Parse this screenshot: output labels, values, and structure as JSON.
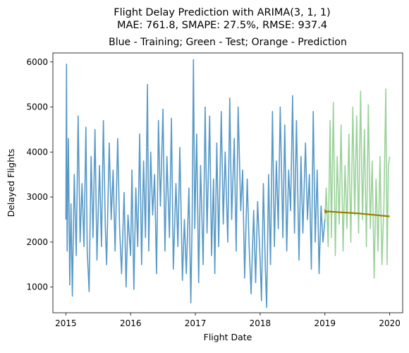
{
  "chart_data": {
    "type": "line",
    "suptitle_lines": [
      "Flight Delay Prediction with ARIMA(3, 1, 1)",
      "MAE: 761.8, SMAPE: 27.5%, RMSE: 937.4"
    ],
    "title": "Blue - Training; Green - Test; Orange - Prediction",
    "xlabel": "Flight Date",
    "ylabel": "Delayed Flights",
    "xlim": [
      2014.8,
      2020.2
    ],
    "ylim": [
      430,
      6200
    ],
    "x_ticks": [
      {
        "value": 2015,
        "label": "2015"
      },
      {
        "value": 2016,
        "label": "2016"
      },
      {
        "value": 2017,
        "label": "2017"
      },
      {
        "value": 2018,
        "label": "2018"
      },
      {
        "value": 2019,
        "label": "2019"
      },
      {
        "value": 2020,
        "label": "2020"
      }
    ],
    "y_ticks": [
      {
        "value": 1000,
        "label": "1000"
      },
      {
        "value": 2000,
        "label": "2000"
      },
      {
        "value": 3000,
        "label": "3000"
      },
      {
        "value": 4000,
        "label": "4000"
      },
      {
        "value": 5000,
        "label": "5000"
      },
      {
        "value": 6000,
        "label": "6000"
      }
    ],
    "grid": false,
    "series": [
      {
        "role": "training",
        "color": "#1f77b4",
        "opacity": 0.75,
        "points": [
          [
            2015.0,
            2500
          ],
          [
            2015.01,
            5950
          ],
          [
            2015.02,
            1800
          ],
          [
            2015.04,
            4300
          ],
          [
            2015.06,
            1050
          ],
          [
            2015.08,
            2850
          ],
          [
            2015.1,
            800
          ],
          [
            2015.13,
            3500
          ],
          [
            2015.16,
            1700
          ],
          [
            2015.19,
            4800
          ],
          [
            2015.22,
            2000
          ],
          [
            2015.25,
            3300
          ],
          [
            2015.28,
            1900
          ],
          [
            2015.31,
            4550
          ],
          [
            2015.33,
            1800
          ],
          [
            2015.36,
            900
          ],
          [
            2015.39,
            3900
          ],
          [
            2015.42,
            2100
          ],
          [
            2015.45,
            4500
          ],
          [
            2015.48,
            1600
          ],
          [
            2015.52,
            3700
          ],
          [
            2015.55,
            1900
          ],
          [
            2015.58,
            4700
          ],
          [
            2015.61,
            2300
          ],
          [
            2015.63,
            1500
          ],
          [
            2015.67,
            4200
          ],
          [
            2015.7,
            2500
          ],
          [
            2015.73,
            3600
          ],
          [
            2015.76,
            1800
          ],
          [
            2015.8,
            4300
          ],
          [
            2015.83,
            2300
          ],
          [
            2015.86,
            1300
          ],
          [
            2015.9,
            3100
          ],
          [
            2015.93,
            1000
          ],
          [
            2015.96,
            2600
          ],
          [
            2016.0,
            1700
          ],
          [
            2016.02,
            3600
          ],
          [
            2016.05,
            950
          ],
          [
            2016.08,
            3200
          ],
          [
            2016.11,
            1900
          ],
          [
            2016.14,
            4400
          ],
          [
            2016.17,
            1500
          ],
          [
            2016.2,
            3800
          ],
          [
            2016.23,
            2100
          ],
          [
            2016.26,
            5500
          ],
          [
            2016.28,
            1800
          ],
          [
            2016.31,
            4000
          ],
          [
            2016.34,
            2600
          ],
          [
            2016.37,
            3500
          ],
          [
            2016.4,
            1300
          ],
          [
            2016.43,
            4700
          ],
          [
            2016.46,
            2800
          ],
          [
            2016.5,
            4950
          ],
          [
            2016.53,
            1800
          ],
          [
            2016.56,
            3900
          ],
          [
            2016.6,
            2100
          ],
          [
            2016.63,
            4750
          ],
          [
            2016.66,
            1400
          ],
          [
            2016.7,
            3300
          ],
          [
            2016.73,
            1900
          ],
          [
            2016.76,
            4100
          ],
          [
            2016.8,
            1150
          ],
          [
            2016.83,
            2500
          ],
          [
            2016.86,
            1300
          ],
          [
            2016.9,
            3200
          ],
          [
            2016.93,
            650
          ],
          [
            2016.95,
            2500
          ],
          [
            2016.97,
            6050
          ],
          [
            2016.99,
            2300
          ],
          [
            2017.02,
            4400
          ],
          [
            2017.05,
            1100
          ],
          [
            2017.08,
            3700
          ],
          [
            2017.12,
            1500
          ],
          [
            2017.15,
            5000
          ],
          [
            2017.18,
            2200
          ],
          [
            2017.22,
            4800
          ],
          [
            2017.25,
            1700
          ],
          [
            2017.28,
            3400
          ],
          [
            2017.3,
            1300
          ],
          [
            2017.33,
            4200
          ],
          [
            2017.36,
            1900
          ],
          [
            2017.4,
            4900
          ],
          [
            2017.43,
            2400
          ],
          [
            2017.46,
            4000
          ],
          [
            2017.5,
            2000
          ],
          [
            2017.53,
            5200
          ],
          [
            2017.56,
            2500
          ],
          [
            2017.6,
            4300
          ],
          [
            2017.63,
            1800
          ],
          [
            2017.66,
            5000
          ],
          [
            2017.7,
            2700
          ],
          [
            2017.73,
            3600
          ],
          [
            2017.76,
            1200
          ],
          [
            2017.8,
            3400
          ],
          [
            2017.83,
            1900
          ],
          [
            2017.86,
            850
          ],
          [
            2017.9,
            2700
          ],
          [
            2017.93,
            1100
          ],
          [
            2017.96,
            2900
          ],
          [
            2018.0,
            1600
          ],
          [
            2018.02,
            700
          ],
          [
            2018.05,
            3300
          ],
          [
            2018.08,
            1400
          ],
          [
            2018.1,
            550
          ],
          [
            2018.13,
            3500
          ],
          [
            2018.16,
            1500
          ],
          [
            2018.19,
            4900
          ],
          [
            2018.22,
            1900
          ],
          [
            2018.25,
            3800
          ],
          [
            2018.28,
            2300
          ],
          [
            2018.31,
            5000
          ],
          [
            2018.35,
            2100
          ],
          [
            2018.38,
            4600
          ],
          [
            2018.41,
            1800
          ],
          [
            2018.44,
            3600
          ],
          [
            2018.47,
            2700
          ],
          [
            2018.5,
            5250
          ],
          [
            2018.53,
            2200
          ],
          [
            2018.56,
            4700
          ],
          [
            2018.6,
            1600
          ],
          [
            2018.63,
            3900
          ],
          [
            2018.66,
            2200
          ],
          [
            2018.7,
            4200
          ],
          [
            2018.73,
            2500
          ],
          [
            2018.76,
            3500
          ],
          [
            2018.79,
            1400
          ],
          [
            2018.82,
            4900
          ],
          [
            2018.85,
            2000
          ],
          [
            2018.88,
            3600
          ],
          [
            2018.91,
            1300
          ],
          [
            2018.94,
            2800
          ],
          [
            2018.97,
            2000
          ],
          [
            2019.0,
            2500
          ]
        ]
      },
      {
        "role": "test",
        "color": "#2ca02c",
        "opacity": 0.48,
        "points": [
          [
            2019.0,
            2500
          ],
          [
            2019.02,
            3200
          ],
          [
            2019.05,
            1900
          ],
          [
            2019.08,
            4700
          ],
          [
            2019.1,
            2100
          ],
          [
            2019.13,
            5100
          ],
          [
            2019.16,
            1700
          ],
          [
            2019.19,
            3900
          ],
          [
            2019.22,
            2400
          ],
          [
            2019.25,
            4600
          ],
          [
            2019.28,
            1800
          ],
          [
            2019.31,
            3700
          ],
          [
            2019.34,
            2300
          ],
          [
            2019.37,
            4400
          ],
          [
            2019.4,
            2000
          ],
          [
            2019.43,
            5000
          ],
          [
            2019.46,
            2600
          ],
          [
            2019.49,
            4800
          ],
          [
            2019.52,
            2200
          ],
          [
            2019.55,
            5350
          ],
          [
            2019.58,
            2500
          ],
          [
            2019.61,
            4500
          ],
          [
            2019.64,
            1900
          ],
          [
            2019.67,
            5050
          ],
          [
            2019.7,
            2300
          ],
          [
            2019.73,
            3800
          ],
          [
            2019.76,
            1200
          ],
          [
            2019.79,
            3400
          ],
          [
            2019.82,
            1800
          ],
          [
            2019.85,
            3900
          ],
          [
            2019.88,
            1500
          ],
          [
            2019.91,
            2800
          ],
          [
            2019.94,
            5400
          ],
          [
            2019.96,
            1500
          ],
          [
            2019.98,
            3700
          ],
          [
            2020.0,
            3900
          ]
        ]
      },
      {
        "role": "prediction",
        "color": "#9a7d00",
        "opacity": 1,
        "points": [
          [
            2019.0,
            2720
          ],
          [
            2019.01,
            2650
          ],
          [
            2019.02,
            2690
          ],
          [
            2019.03,
            2670
          ],
          [
            2019.05,
            2680
          ],
          [
            2019.25,
            2660
          ],
          [
            2019.5,
            2640
          ],
          [
            2019.75,
            2605
          ],
          [
            2020.0,
            2570
          ]
        ]
      }
    ]
  }
}
